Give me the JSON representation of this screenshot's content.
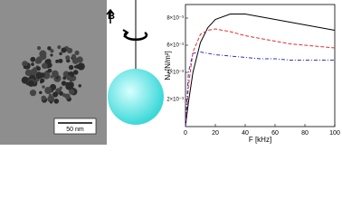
{
  "scale_bar": "50 nm",
  "field_label": "B",
  "chart_data": {
    "type": "line",
    "xlabel": "F [kHz]",
    "ylabel": "Nᵥ [N/m²]",
    "x": [
      0,
      2,
      5,
      10,
      15,
      20,
      30,
      40,
      50,
      60,
      70,
      80,
      90,
      100
    ],
    "series": [
      {
        "color": "#000000",
        "style": "solid",
        "values": [
          0,
          0.0018,
          0.004,
          0.0062,
          0.0073,
          0.0079,
          0.0083,
          0.0083,
          0.0081,
          0.0079,
          0.0077,
          0.0075,
          0.0073,
          0.0071
        ]
      },
      {
        "color": "#e03030",
        "style": "dashed",
        "values": [
          0,
          0.003,
          0.0055,
          0.0068,
          0.0071,
          0.0072,
          0.007,
          0.0067,
          0.0065,
          0.0063,
          0.0061,
          0.006,
          0.0059,
          0.0058
        ]
      },
      {
        "color": "#3030c0",
        "style": "dashdot",
        "values": [
          0,
          0.004,
          0.0054,
          0.0055,
          0.0054,
          0.0053,
          0.0052,
          0.0051,
          0.005,
          0.005,
          0.0049,
          0.0049,
          0.0049,
          0.0049
        ]
      }
    ],
    "xlim": [
      0,
      100
    ],
    "xticks": [
      0,
      20,
      40,
      60,
      80,
      100
    ],
    "ylim": [
      0,
      0.009
    ],
    "yticks": [
      {
        "value": 0.002,
        "label": "2×10⁻³"
      },
      {
        "value": 0.004,
        "label": "4×10⁻³"
      },
      {
        "value": 0.006,
        "label": "6×10⁻³"
      },
      {
        "value": 0.008,
        "label": "8×10⁻³"
      }
    ]
  }
}
